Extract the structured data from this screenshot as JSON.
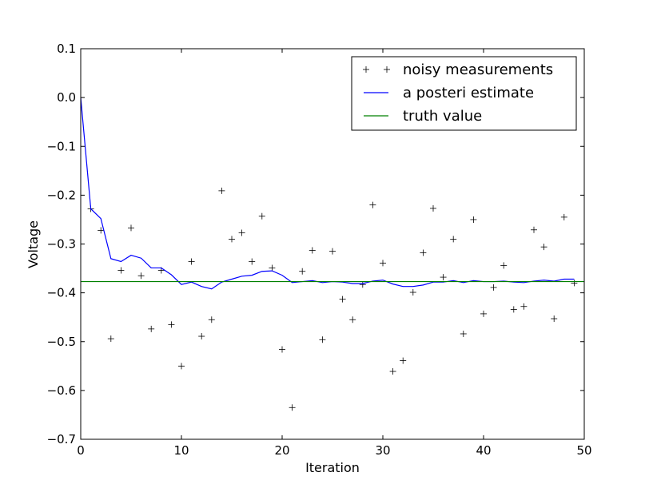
{
  "chart_data": {
    "type": "line",
    "title": "",
    "xlabel": "Iteration",
    "ylabel": "Voltage",
    "xlim": [
      0,
      50
    ],
    "ylim": [
      -0.7,
      0.1
    ],
    "x_ticks": [
      0,
      10,
      20,
      30,
      40,
      50
    ],
    "y_ticks": [
      0.1,
      0.0,
      -0.1,
      -0.2,
      -0.3,
      -0.4,
      -0.5,
      -0.6,
      -0.7
    ],
    "x_tick_labels": [
      "0",
      "10",
      "20",
      "30",
      "40",
      "50"
    ],
    "y_tick_labels": [
      "0.1",
      "0.0",
      "−0.1",
      "−0.2",
      "−0.3",
      "−0.4",
      "−0.5",
      "−0.6",
      "−0.7"
    ],
    "grid": false,
    "legend_position": "top-right",
    "series": [
      {
        "name": "noisy measurements",
        "kind": "markers",
        "marker": "+",
        "color": "#000000",
        "x": [
          1,
          2,
          3,
          4,
          5,
          6,
          7,
          8,
          9,
          10,
          11,
          12,
          13,
          14,
          15,
          16,
          17,
          18,
          19,
          20,
          21,
          22,
          23,
          24,
          25,
          26,
          27,
          28,
          29,
          30,
          31,
          32,
          33,
          34,
          35,
          36,
          37,
          38,
          39,
          40,
          41,
          42,
          43,
          44,
          45,
          46,
          47,
          48,
          49
        ],
        "y": [
          -0.228,
          -0.272,
          -0.494,
          -0.354,
          -0.267,
          -0.365,
          -0.474,
          -0.354,
          -0.465,
          -0.55,
          -0.336,
          -0.489,
          -0.455,
          -0.191,
          -0.29,
          -0.277,
          -0.336,
          -0.243,
          -0.349,
          -0.516,
          -0.635,
          -0.356,
          -0.313,
          -0.496,
          -0.315,
          -0.413,
          -0.455,
          -0.383,
          -0.22,
          -0.339,
          -0.561,
          -0.539,
          -0.399,
          -0.318,
          -0.227,
          -0.368,
          -0.29,
          -0.484,
          -0.25,
          -0.443,
          -0.389,
          -0.344,
          -0.434,
          -0.428,
          -0.271,
          -0.306,
          -0.453,
          -0.245,
          -0.38
        ]
      },
      {
        "name": "a posteri estimate",
        "kind": "line",
        "color": "#0000ff",
        "x": [
          0,
          1,
          2,
          3,
          4,
          5,
          6,
          7,
          8,
          9,
          10,
          11,
          12,
          13,
          14,
          15,
          16,
          17,
          18,
          19,
          20,
          21,
          22,
          23,
          24,
          25,
          26,
          27,
          28,
          29,
          30,
          31,
          32,
          33,
          34,
          35,
          36,
          37,
          38,
          39,
          40,
          41,
          42,
          43,
          44,
          45,
          46,
          47,
          48,
          49
        ],
        "y": [
          0.0,
          -0.228,
          -0.248,
          -0.33,
          -0.336,
          -0.323,
          -0.329,
          -0.349,
          -0.349,
          -0.363,
          -0.383,
          -0.378,
          -0.387,
          -0.392,
          -0.378,
          -0.372,
          -0.366,
          -0.364,
          -0.356,
          -0.355,
          -0.364,
          -0.379,
          -0.377,
          -0.375,
          -0.379,
          -0.377,
          -0.378,
          -0.381,
          -0.381,
          -0.376,
          -0.374,
          -0.382,
          -0.387,
          -0.387,
          -0.384,
          -0.378,
          -0.378,
          -0.375,
          -0.379,
          -0.375,
          -0.377,
          -0.377,
          -0.376,
          -0.378,
          -0.379,
          -0.376,
          -0.374,
          -0.376,
          -0.372,
          -0.372
        ]
      },
      {
        "name": "truth value",
        "kind": "hline",
        "color": "#008000",
        "x": [
          0,
          49
        ],
        "y": [
          -0.377,
          -0.377
        ]
      }
    ]
  }
}
